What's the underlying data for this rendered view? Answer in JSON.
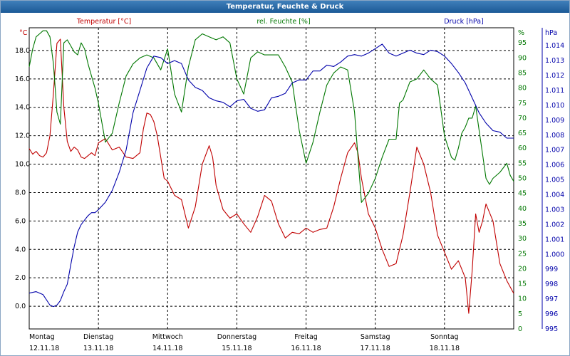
{
  "window": {
    "title": "Temperatur, Feuchte & Druck"
  },
  "colors": {
    "temperature": "#c00000",
    "humidity": "#007700",
    "pressure": "#0000aa",
    "grid": "#000000",
    "text": "#000000"
  },
  "chart_data": {
    "type": "line",
    "title": "Temperatur, Feuchte & Druck",
    "grid": true,
    "x": {
      "range": [
        0,
        7
      ],
      "unit_note": "days from Montag 12.11.18 00:00",
      "ticks": [
        {
          "pos": 0,
          "day": "Montag",
          "date": "12.11.18"
        },
        {
          "pos": 1,
          "day": "Dienstag",
          "date": "13.11.18"
        },
        {
          "pos": 2,
          "day": "Mittwoch",
          "date": "14.11.18"
        },
        {
          "pos": 3,
          "day": "Donnerstag",
          "date": "15.11.18"
        },
        {
          "pos": 4,
          "day": "Freitag",
          "date": "16.11.18"
        },
        {
          "pos": 5,
          "day": "Samstag",
          "date": "17.11.18"
        },
        {
          "pos": 6,
          "day": "Sonntag",
          "date": "18.11.18"
        }
      ]
    },
    "axes": {
      "temperature": {
        "label": "Temperatur [°C]",
        "unit": "°C",
        "min": -1.6,
        "max": 19.6,
        "ticks": [
          "0.0",
          "2.0",
          "4.0",
          "6.0",
          "8.0",
          "10.0",
          "12.0",
          "14.0",
          "16.0",
          "18.0"
        ],
        "tick_start": 0,
        "tick_step": 2
      },
      "humidity": {
        "label": "rel. Feuchte [%]",
        "unit": "%",
        "min": 0,
        "max": 100,
        "ticks": [
          "0",
          "5",
          "10",
          "15",
          "20",
          "25",
          "30",
          "35",
          "40",
          "45",
          "50",
          "55",
          "60",
          "65",
          "70",
          "75",
          "80",
          "85",
          "90",
          "95"
        ],
        "tick_start": 0,
        "tick_step": 5
      },
      "pressure": {
        "label": "Druck [hPa]",
        "unit": "hPa",
        "min": 995,
        "max": 1015.2,
        "ticks": [
          "995",
          "996",
          "997",
          "998",
          "999",
          "1.000",
          "1.001",
          "1.002",
          "1.003",
          "1.004",
          "1.005",
          "1.006",
          "1.007",
          "1.008",
          "1.009",
          "1.010",
          "1.011",
          "1.012",
          "1.013",
          "1.014"
        ],
        "tick_start": 995,
        "tick_step": 1
      }
    },
    "series": [
      {
        "name": "Temperatur [°C]",
        "axis": "temperature",
        "x": [
          0,
          0.05,
          0.1,
          0.15,
          0.2,
          0.25,
          0.3,
          0.35,
          0.4,
          0.45,
          0.5,
          0.55,
          0.6,
          0.65,
          0.7,
          0.75,
          0.8,
          0.85,
          0.9,
          0.95,
          1,
          1.1,
          1.2,
          1.3,
          1.4,
          1.5,
          1.6,
          1.65,
          1.7,
          1.75,
          1.8,
          1.85,
          1.9,
          1.95,
          2,
          2.1,
          2.2,
          2.3,
          2.4,
          2.5,
          2.6,
          2.65,
          2.7,
          2.8,
          2.9,
          3,
          3.1,
          3.2,
          3.3,
          3.4,
          3.5,
          3.6,
          3.7,
          3.8,
          3.9,
          4,
          4.1,
          4.2,
          4.3,
          4.4,
          4.5,
          4.6,
          4.7,
          4.75,
          4.8,
          4.9,
          5,
          5.1,
          5.2,
          5.3,
          5.4,
          5.5,
          5.6,
          5.7,
          5.8,
          5.9,
          6,
          6.1,
          6.2,
          6.3,
          6.35,
          6.4,
          6.45,
          6.5,
          6.55,
          6.6,
          6.7,
          6.8,
          6.9,
          7
        ],
        "y": [
          11.1,
          10.7,
          10.9,
          10.6,
          10.5,
          10.8,
          12.0,
          15.0,
          18.5,
          18.8,
          14.0,
          11.6,
          10.9,
          11.2,
          11.0,
          10.5,
          10.4,
          10.6,
          10.8,
          10.6,
          11.5,
          11.8,
          11.0,
          11.2,
          10.5,
          10.4,
          10.8,
          12.5,
          13.6,
          13.5,
          13.0,
          12.0,
          10.5,
          9.0,
          8.8,
          7.8,
          7.5,
          5.5,
          7.0,
          10.0,
          11.3,
          10.5,
          8.5,
          6.8,
          6.2,
          6.5,
          5.8,
          5.2,
          6.3,
          7.8,
          7.4,
          5.8,
          4.8,
          5.2,
          5.1,
          5.5,
          5.2,
          5.4,
          5.5,
          7.0,
          9.0,
          10.8,
          11.5,
          10.8,
          9.0,
          6.5,
          5.5,
          4.0,
          2.8,
          3.0,
          5.0,
          8.0,
          11.2,
          10.0,
          8.0,
          5.0,
          3.8,
          2.6,
          3.2,
          2.0,
          -0.5,
          2.5,
          6.5,
          5.2,
          6.0,
          7.2,
          6.0,
          3.0,
          1.8,
          0.9
        ]
      },
      {
        "name": "rel. Feuchte [%]",
        "axis": "humidity",
        "x": [
          0,
          0.05,
          0.1,
          0.15,
          0.2,
          0.25,
          0.3,
          0.35,
          0.4,
          0.45,
          0.5,
          0.55,
          0.6,
          0.65,
          0.7,
          0.75,
          0.8,
          0.85,
          0.9,
          0.95,
          1,
          1.1,
          1.2,
          1.3,
          1.4,
          1.5,
          1.6,
          1.7,
          1.8,
          1.9,
          2,
          2.1,
          2.2,
          2.3,
          2.4,
          2.5,
          2.6,
          2.7,
          2.8,
          2.9,
          3,
          3.1,
          3.2,
          3.3,
          3.4,
          3.5,
          3.6,
          3.7,
          3.8,
          3.9,
          4,
          4.1,
          4.2,
          4.3,
          4.4,
          4.5,
          4.6,
          4.7,
          4.8,
          4.9,
          5,
          5.1,
          5.2,
          5.3,
          5.35,
          5.4,
          5.5,
          5.6,
          5.7,
          5.8,
          5.9,
          6,
          6.1,
          6.15,
          6.2,
          6.25,
          6.3,
          6.35,
          6.4,
          6.45,
          6.5,
          6.55,
          6.6,
          6.65,
          6.7,
          6.8,
          6.9,
          6.95,
          7
        ],
        "y": [
          87,
          93,
          97,
          98,
          99,
          99,
          97,
          88,
          72,
          68,
          95,
          96,
          94,
          92,
          91,
          95,
          93,
          88,
          84,
          80,
          75,
          62,
          65,
          75,
          84,
          88,
          90,
          91,
          90,
          86,
          93,
          78,
          72,
          87,
          96,
          98,
          97,
          96,
          97,
          95,
          83,
          78,
          90,
          92,
          91,
          91,
          91,
          87,
          82,
          66,
          55,
          62,
          72,
          81,
          85,
          87,
          86,
          72,
          42,
          45,
          50,
          57,
          63,
          63,
          75,
          76,
          82,
          83,
          86,
          83,
          81,
          64,
          57,
          56,
          60,
          65,
          67,
          70,
          70,
          74,
          66,
          58,
          50,
          48,
          50,
          52,
          55,
          51,
          49
        ]
      },
      {
        "name": "Druck [hPa]",
        "axis": "pressure",
        "x": [
          0,
          0.1,
          0.2,
          0.3,
          0.35,
          0.4,
          0.45,
          0.5,
          0.55,
          0.6,
          0.65,
          0.7,
          0.75,
          0.8,
          0.85,
          0.9,
          0.95,
          1,
          1.1,
          1.2,
          1.3,
          1.4,
          1.5,
          1.6,
          1.7,
          1.8,
          1.9,
          2,
          2.1,
          2.2,
          2.3,
          2.4,
          2.5,
          2.6,
          2.7,
          2.8,
          2.9,
          3,
          3.1,
          3.2,
          3.3,
          3.4,
          3.5,
          3.6,
          3.7,
          3.8,
          3.9,
          4,
          4.1,
          4.2,
          4.3,
          4.4,
          4.5,
          4.6,
          4.7,
          4.8,
          4.9,
          5,
          5.1,
          5.2,
          5.3,
          5.4,
          5.5,
          5.6,
          5.7,
          5.8,
          5.9,
          6,
          6.1,
          6.2,
          6.3,
          6.4,
          6.5,
          6.6,
          6.7,
          6.8,
          6.9,
          7
        ],
        "y": [
          997.4,
          997.5,
          997.3,
          996.6,
          996.5,
          996.6,
          996.9,
          997.5,
          998.0,
          999.3,
          1000.5,
          1001.5,
          1002.0,
          1002.3,
          1002.6,
          1002.8,
          1002.8,
          1003.0,
          1003.5,
          1004.3,
          1005.5,
          1007.0,
          1009.5,
          1011.0,
          1012.5,
          1013.3,
          1013.2,
          1012.8,
          1013.0,
          1012.8,
          1011.7,
          1011.2,
          1011.0,
          1010.5,
          1010.3,
          1010.2,
          1009.9,
          1010.3,
          1010.4,
          1009.8,
          1009.6,
          1009.7,
          1010.5,
          1010.6,
          1010.8,
          1011.5,
          1011.7,
          1011.7,
          1012.3,
          1012.3,
          1012.7,
          1012.6,
          1012.9,
          1013.3,
          1013.4,
          1013.3,
          1013.5,
          1013.8,
          1014.1,
          1013.5,
          1013.3,
          1013.5,
          1013.7,
          1013.5,
          1013.4,
          1013.7,
          1013.6,
          1013.3,
          1012.8,
          1012.2,
          1011.5,
          1010.5,
          1009.5,
          1008.8,
          1008.3,
          1008.2,
          1007.8,
          1007.8
        ]
      }
    ]
  }
}
